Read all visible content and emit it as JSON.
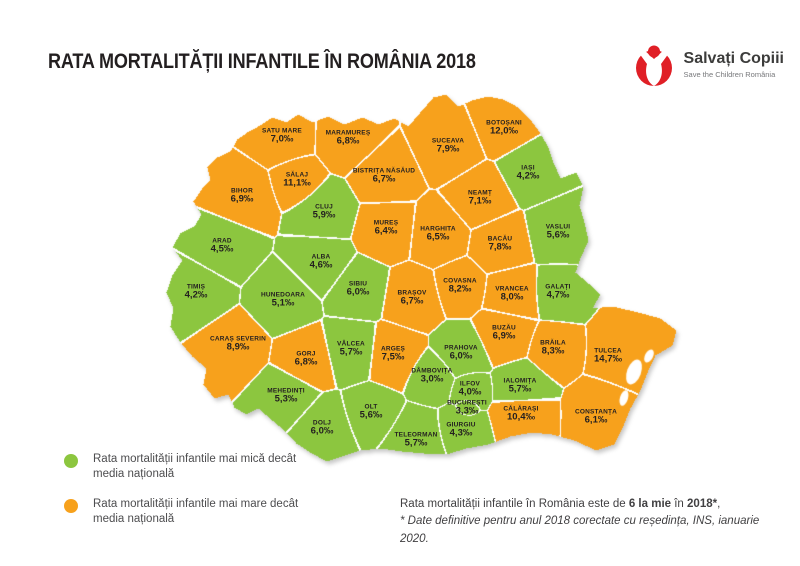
{
  "title": "RATA MORTALITĂȚII INFANTILE ÎN ROMÂNIA 2018",
  "logo": {
    "name": "Salvați Copiii",
    "tagline": "Save the Children România",
    "red": "#e01f26"
  },
  "colors": {
    "below": "#8cc63f",
    "above": "#f7a11c",
    "label": "#231f20"
  },
  "legend": [
    {
      "color_key": "below",
      "label": "Rata mortalității infantile mai mică decât media națională"
    },
    {
      "color_key": "above",
      "label": "Rata mortalității infantile mai mare decât media națională"
    }
  ],
  "footnote": {
    "line1_prefix": "Rata mortalității infantile în România este de ",
    "line1_bold1": "6 la mie",
    "line1_mid": " în ",
    "line1_bold2": "2018*",
    "line1_suffix": ",",
    "line2": "* Date definitive pentru anul 2018 corectate cu reședința, INS, ianuarie 2020."
  },
  "map": {
    "unit": "‰",
    "counties": [
      {
        "id": "satu-mare",
        "name": "SATU MARE",
        "value": "7,0",
        "status": "above"
      },
      {
        "id": "maramures",
        "name": "MARAMUREȘ",
        "value": "6,8",
        "status": "above"
      },
      {
        "id": "suceava",
        "name": "SUCEAVA",
        "value": "7,9",
        "status": "above"
      },
      {
        "id": "botosani",
        "name": "BOTOȘANI",
        "value": "12,0",
        "status": "above"
      },
      {
        "id": "salaj",
        "name": "SĂLAJ",
        "value": "11,1",
        "status": "above"
      },
      {
        "id": "bistrita-nasaud",
        "name": "BISTRIȚA NĂSĂUD",
        "value": "6,7",
        "status": "above"
      },
      {
        "id": "iasi",
        "name": "IAȘI",
        "value": "4,2",
        "status": "below"
      },
      {
        "id": "bihor",
        "name": "BIHOR",
        "value": "6,9",
        "status": "above"
      },
      {
        "id": "cluj",
        "name": "CLUJ",
        "value": "5,9",
        "status": "below"
      },
      {
        "id": "mures",
        "name": "MUREȘ",
        "value": "6,4",
        "status": "above"
      },
      {
        "id": "harghita",
        "name": "HARGHITA",
        "value": "6,5",
        "status": "above"
      },
      {
        "id": "neamt",
        "name": "NEAMȚ",
        "value": "7,1",
        "status": "above"
      },
      {
        "id": "bacau",
        "name": "BACĂU",
        "value": "7,8",
        "status": "above"
      },
      {
        "id": "vaslui",
        "name": "VASLUI",
        "value": "5,6",
        "status": "below"
      },
      {
        "id": "arad",
        "name": "ARAD",
        "value": "4,5",
        "status": "below"
      },
      {
        "id": "alba",
        "name": "ALBA",
        "value": "4,6",
        "status": "below"
      },
      {
        "id": "timis",
        "name": "TIMIȘ",
        "value": "4,2",
        "status": "below"
      },
      {
        "id": "hunedoara",
        "name": "HUNEDOARA",
        "value": "5,1",
        "status": "below"
      },
      {
        "id": "sibiu",
        "name": "SIBIU",
        "value": "6,0",
        "status": "below"
      },
      {
        "id": "brasov",
        "name": "BRAȘOV",
        "value": "6,7",
        "status": "above"
      },
      {
        "id": "covasna",
        "name": "COVASNA",
        "value": "8,2",
        "status": "above"
      },
      {
        "id": "vrancea",
        "name": "VRANCEA",
        "value": "8,0",
        "status": "above"
      },
      {
        "id": "galati",
        "name": "GALAȚI",
        "value": "4,7",
        "status": "below"
      },
      {
        "id": "caras-severin",
        "name": "CARAȘ SEVERIN",
        "value": "8,9",
        "status": "above"
      },
      {
        "id": "gorj",
        "name": "GORJ",
        "value": "6,8",
        "status": "above"
      },
      {
        "id": "valcea",
        "name": "VÂLCEA",
        "value": "5,7",
        "status": "below"
      },
      {
        "id": "arges",
        "name": "ARGEȘ",
        "value": "7,5",
        "status": "above"
      },
      {
        "id": "prahova",
        "name": "PRAHOVA",
        "value": "6,0",
        "status": "below"
      },
      {
        "id": "buzau",
        "name": "BUZĂU",
        "value": "6,9",
        "status": "above"
      },
      {
        "id": "braila",
        "name": "BRĂILA",
        "value": "8,3",
        "status": "above"
      },
      {
        "id": "tulcea",
        "name": "TULCEA",
        "value": "14,7",
        "status": "above"
      },
      {
        "id": "mehedinti",
        "name": "MEHEDINȚI",
        "value": "5,3",
        "status": "below"
      },
      {
        "id": "dambovita",
        "name": "DÂMBOVIȚA",
        "value": "3,0",
        "status": "below"
      },
      {
        "id": "ilfov",
        "name": "ILFOV",
        "value": "4,0",
        "status": "below"
      },
      {
        "id": "bucuresti",
        "name": "BUCUREȘTI",
        "value": "3,3",
        "status": "below"
      },
      {
        "id": "ialomita",
        "name": "IALOMIȚA",
        "value": "5,7",
        "status": "below"
      },
      {
        "id": "calarasi",
        "name": "CĂLĂRAȘI",
        "value": "10,4",
        "status": "above"
      },
      {
        "id": "constanta",
        "name": "CONSTANȚA",
        "value": "6,1",
        "status": "above"
      },
      {
        "id": "dolj",
        "name": "DOLJ",
        "value": "6,0",
        "status": "below"
      },
      {
        "id": "olt",
        "name": "OLT",
        "value": "5,6",
        "status": "below"
      },
      {
        "id": "teleorman",
        "name": "TELEORMAN",
        "value": "5,7",
        "status": "below"
      },
      {
        "id": "giurgiu",
        "name": "GIURGIU",
        "value": "4,3",
        "status": "below"
      }
    ]
  }
}
